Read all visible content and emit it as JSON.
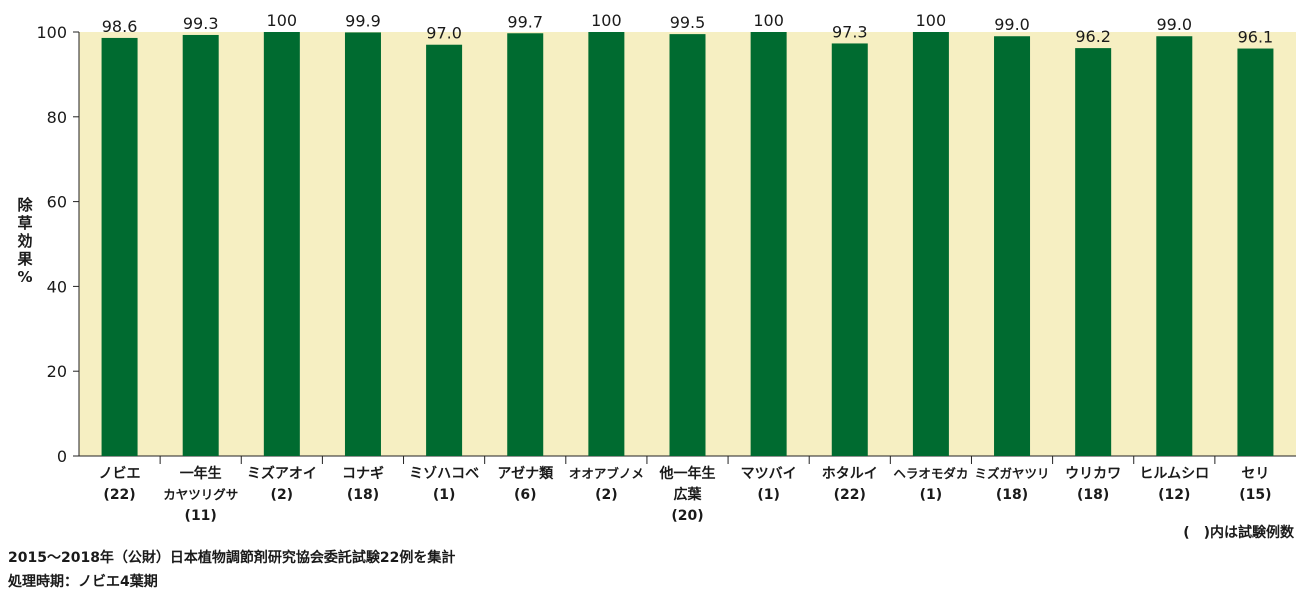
{
  "chart_data": {
    "type": "bar",
    "ylabel": "除草効果%",
    "ylim": [
      0,
      100
    ],
    "yticks": [
      0,
      20,
      40,
      60,
      80,
      100
    ],
    "grid": false,
    "categories": [
      {
        "lines": [
          "ノビエ",
          "(22)"
        ]
      },
      {
        "lines": [
          "一年生",
          "カヤツリグサ",
          "(11)"
        ]
      },
      {
        "lines": [
          "ミズアオイ",
          "(2)"
        ]
      },
      {
        "lines": [
          "コナギ",
          "(18)"
        ]
      },
      {
        "lines": [
          "ミゾハコベ",
          "(1)"
        ]
      },
      {
        "lines": [
          "アゼナ類",
          "(6)"
        ]
      },
      {
        "lines": [
          "オオアブノメ",
          "(2)"
        ]
      },
      {
        "lines": [
          "他一年生",
          "広葉",
          "(20)"
        ]
      },
      {
        "lines": [
          "マツバイ",
          "(1)"
        ]
      },
      {
        "lines": [
          "ホタルイ",
          "(22)"
        ]
      },
      {
        "lines": [
          "ヘラオモダカ",
          "(1)"
        ]
      },
      {
        "lines": [
          "ミズガヤツリ",
          "(18)"
        ]
      },
      {
        "lines": [
          "ウリカワ",
          "(18)"
        ]
      },
      {
        "lines": [
          "ヒルムシロ",
          "(12)"
        ]
      },
      {
        "lines": [
          "セリ",
          "(15)"
        ]
      }
    ],
    "values": [
      98.6,
      99.3,
      100,
      99.9,
      97.0,
      99.7,
      100,
      99.5,
      100,
      97.3,
      100,
      99.0,
      96.2,
      99.0,
      96.1
    ],
    "value_labels": [
      "98.6",
      "99.3",
      "100",
      "99.9",
      "97.0",
      "99.7",
      "100",
      "99.5",
      "100",
      "97.3",
      "100",
      "99.0",
      "96.2",
      "99.0",
      "96.1"
    ],
    "colors": {
      "bar": "#006b30",
      "plot_bg": "#f6efc2",
      "axis": "#222222"
    }
  },
  "notes": {
    "paren_note": "(　)内は試験例数",
    "footer_line1": "2015〜2018年（公財）日本植物調節剤研究協会委託試験22例を集計",
    "footer_line2": "処理時期：ノビエ4葉期"
  }
}
